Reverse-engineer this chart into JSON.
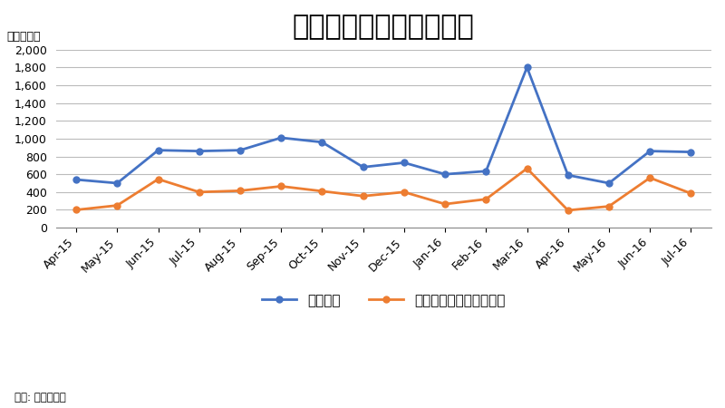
{
  "title": "公共機関からの受注工事",
  "ylabel_unit": "（十億円）",
  "source": "典拠: 国土交通省",
  "categories": [
    "Apr-15",
    "May-15",
    "Jun-15",
    "Jul-15",
    "Aug-15",
    "Sep-15",
    "Oct-15",
    "Nov-15",
    "Dec-15",
    "Jan-16",
    "Feb-16",
    "Mar-16",
    "Apr-16",
    "May-16",
    "Jun-16",
    "Jul-16"
  ],
  "series": [
    {
      "name": "土木工事",
      "color": "#4472C4",
      "marker": "o",
      "values": [
        540,
        500,
        870,
        860,
        870,
        1010,
        960,
        680,
        730,
        600,
        635,
        1800,
        590,
        500,
        860,
        850
      ]
    },
    {
      "name": "建設工事・建設設備工事",
      "color": "#ED7D31",
      "marker": "o",
      "values": [
        200,
        250,
        545,
        400,
        415,
        465,
        410,
        355,
        400,
        265,
        320,
        665,
        195,
        240,
        560,
        385
      ]
    }
  ],
  "ylim": [
    0,
    2000
  ],
  "yticks": [
    0,
    200,
    400,
    600,
    800,
    1000,
    1200,
    1400,
    1600,
    1800,
    2000
  ],
  "background_color": "#FFFFFF",
  "grid_color": "#BBBBBB",
  "title_fontsize": 22,
  "label_fontsize": 9,
  "legend_fontsize": 11,
  "tick_fontsize": 9
}
